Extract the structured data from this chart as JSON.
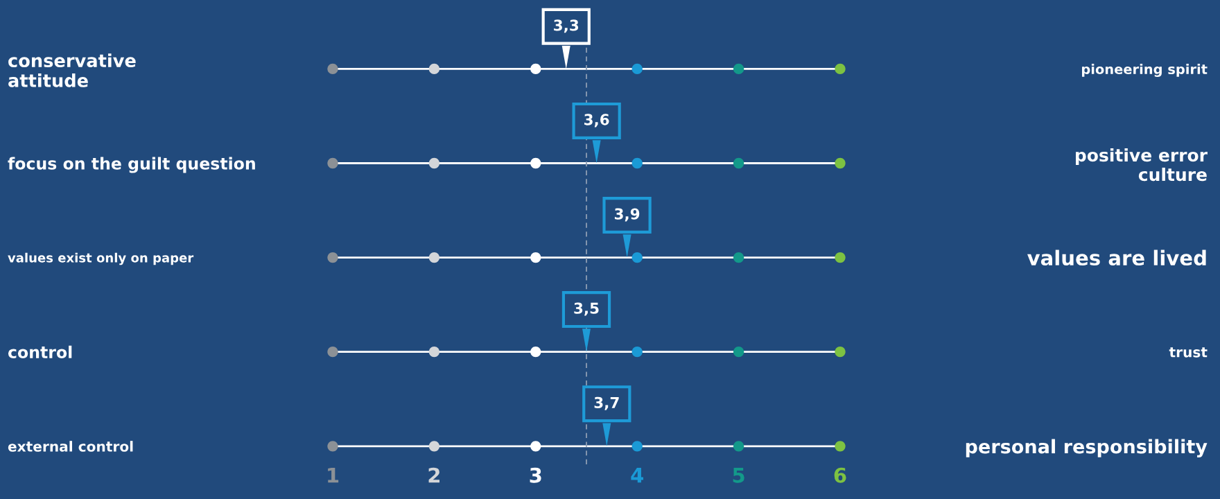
{
  "chart_data": {
    "type": "scatter",
    "orientation": "horizontal",
    "categories": [
      "conservative\nattitude",
      "focus on the guilt question",
      "values exist only on paper",
      "control",
      "external control"
    ],
    "y2_categories": [
      "pioneering spirit",
      "positive error\nculture",
      "values are lived",
      "trust",
      "personal responsibility"
    ],
    "xlim": [
      1,
      6
    ],
    "xticks": [
      1,
      2,
      3,
      4,
      5,
      6
    ],
    "grid": "y",
    "ref_lines": [
      {
        "axis": "x",
        "value": 3.5,
        "color": "#8d9db3",
        "line_style": "dashed"
      }
    ],
    "series": [
      {
        "color": "#8c9196",
        "marker": "circle",
        "values": [
          1,
          1,
          1,
          1,
          1
        ]
      },
      {
        "color": "#d4d6d9",
        "marker": "circle",
        "values": [
          2,
          2,
          2,
          2,
          2
        ]
      },
      {
        "color": "#ffffff",
        "marker": "circle",
        "values": [
          3,
          3,
          3,
          3,
          3
        ]
      },
      {
        "color": "#1a9ad6",
        "marker": "circle",
        "values": [
          4,
          4,
          4,
          4,
          4
        ]
      },
      {
        "color": "#13998a",
        "marker": "circle",
        "values": [
          5,
          5,
          5,
          5,
          5
        ]
      },
      {
        "color": "#7dc242",
        "marker": "circle",
        "values": [
          6,
          6,
          6,
          6,
          6
        ]
      },
      {
        "type": "scatter",
        "marker": "triangle",
        "colors": [
          "#ffffff",
          "#1e9bd7",
          "#1e9bd7",
          "#1e9bd7",
          "#1e9bd7"
        ],
        "values": [
          3.3,
          3.6,
          3.9,
          3.5,
          3.7
        ],
        "value_labels": [
          "3,3",
          "3,6",
          "3,9",
          "3,5",
          "3,7"
        ]
      }
    ]
  }
}
